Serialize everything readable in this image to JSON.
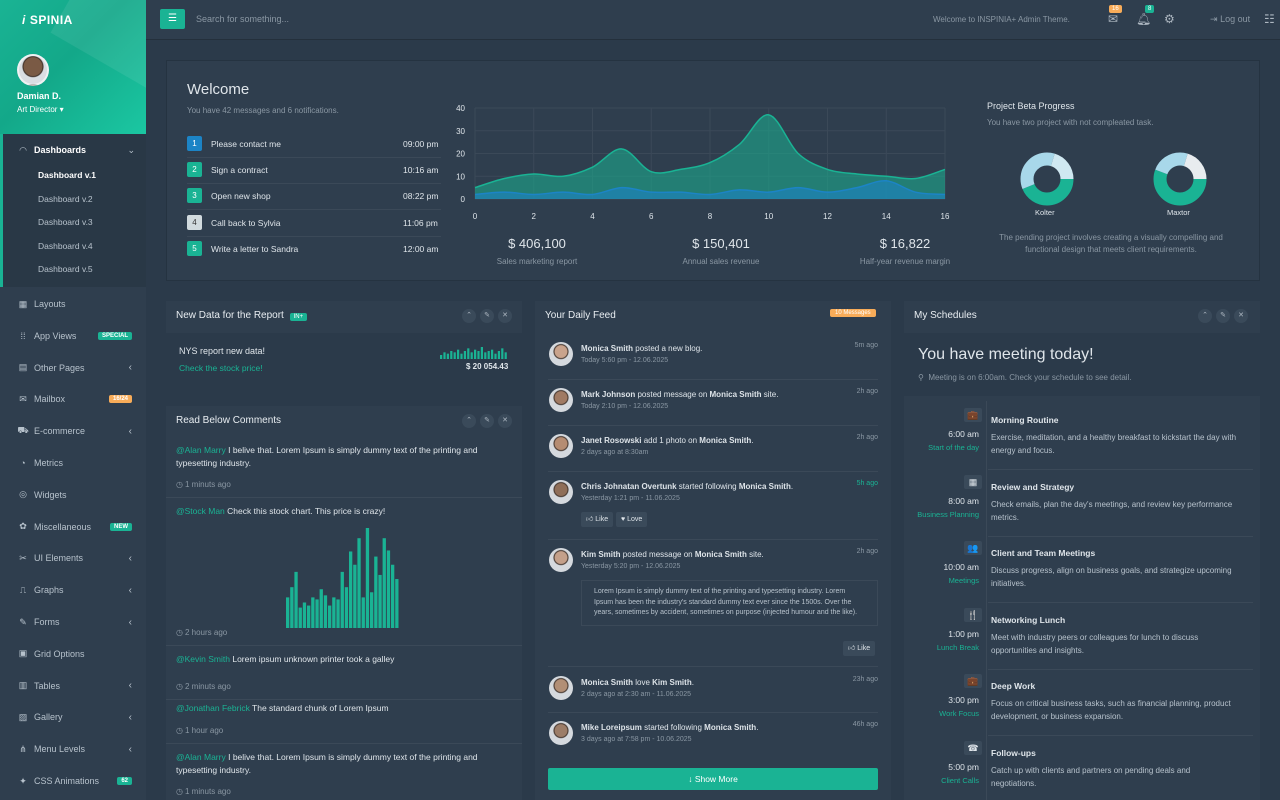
{
  "app": {
    "logo_i": "i",
    "logo_rest": "SPINIA"
  },
  "user": {
    "name": "Damian D.",
    "role": "Art Director ▾"
  },
  "sidebar": {
    "active": {
      "label": "Dashboards",
      "items": [
        "Dashboard v.1",
        "Dashboard v.2",
        "Dashboard v.3",
        "Dashboard v.4",
        "Dashboard v.5"
      ]
    },
    "items": [
      {
        "label": "Layouts",
        "icon": "▦"
      },
      {
        "label": "App Views",
        "icon": "⁞⁞",
        "badge": "SPECIAL"
      },
      {
        "label": "Other Pages",
        "icon": "▤",
        "arrow": "‹"
      },
      {
        "label": "Mailbox",
        "icon": "✉",
        "badge": "16/24"
      },
      {
        "label": "E-commerce",
        "icon": "⛟",
        "arrow": "‹"
      },
      {
        "label": "Metrics",
        "icon": "◔"
      },
      {
        "label": "Widgets",
        "icon": "◎"
      },
      {
        "label": "Miscellaneous",
        "icon": "✿",
        "badge": "NEW"
      },
      {
        "label": "UI Elements",
        "icon": "✂",
        "arrow": "‹"
      },
      {
        "label": "Graphs",
        "icon": "⎍",
        "arrow": "‹"
      },
      {
        "label": "Forms",
        "icon": "✎",
        "arrow": "‹"
      },
      {
        "label": "Grid Options",
        "icon": "▣"
      },
      {
        "label": "Tables",
        "icon": "▥",
        "arrow": "‹"
      },
      {
        "label": "Gallery",
        "icon": "▨",
        "arrow": "‹"
      },
      {
        "label": "Menu Levels",
        "icon": "⋔",
        "arrow": "‹"
      },
      {
        "label": "CSS Animations",
        "icon": "✦",
        "badge": "62"
      }
    ]
  },
  "topbar": {
    "search_placeholder": "Search for something...",
    "welcome": "Welcome to INSPINIA+ Admin Theme.",
    "mail_count": "16",
    "bell_count": "8",
    "logout": "Log out"
  },
  "welcome": {
    "title": "Welcome",
    "subtitle": "You have 42 messages and 6 notifications.",
    "tasks": [
      {
        "n": "1",
        "text": "Please contact me",
        "time": "09:00 pm",
        "color": "#1c84c6"
      },
      {
        "n": "2",
        "text": "Sign a contract",
        "time": "10:16 am",
        "color": "#1ab394"
      },
      {
        "n": "3",
        "text": "Open new shop",
        "time": "08:22 pm",
        "color": "#1ab394"
      },
      {
        "n": "4",
        "text": "Call back to Sylvia",
        "time": "11:06 pm",
        "color": "#d1dade"
      },
      {
        "n": "5",
        "text": "Write a letter to Sandra",
        "time": "12:00 am",
        "color": "#1ab394"
      }
    ],
    "stats": [
      {
        "value": "$ 406,100",
        "label": "Sales marketing report"
      },
      {
        "value": "$ 150,401",
        "label": "Annual sales revenue"
      },
      {
        "value": "$ 16,822",
        "label": "Half-year revenue margin"
      }
    ]
  },
  "chart_data": {
    "type": "area",
    "x": [
      0,
      1,
      2,
      3,
      4,
      5,
      6,
      7,
      8,
      9,
      10,
      11,
      12,
      13,
      14,
      15,
      16
    ],
    "series": [
      {
        "values": [
          5,
          9,
          11,
          10,
          14,
          22,
          12,
          13,
          16,
          24,
          37,
          20,
          13,
          11,
          10,
          9,
          13
        ]
      },
      {
        "values": [
          2,
          3,
          2,
          3,
          2,
          5,
          3,
          3,
          2,
          4,
          3,
          5,
          3,
          5,
          8,
          3,
          2
        ]
      }
    ],
    "xticks": [
      "0",
      "2",
      "4",
      "6",
      "8",
      "10",
      "12",
      "14",
      "16"
    ],
    "yticks": [
      "0",
      "10",
      "20",
      "30",
      "40"
    ],
    "ylim": [
      0,
      40
    ],
    "colors": [
      "#1ab394",
      "#1c84c6"
    ]
  },
  "beta": {
    "title": "Project Beta Progress",
    "subtitle": "You have two project with not compleated task.",
    "donuts": [
      {
        "label": "Kolter"
      },
      {
        "label": "Maxtor"
      }
    ],
    "desc": "The pending project involves creating a visually compelling and functional design that meets client requirements."
  },
  "report": {
    "title": "New Data for the Report",
    "badge": "IN+",
    "headline": "NYS report new data!",
    "link": "Check the stock price!",
    "amount": "$ 20 054.43",
    "spark": [
      3,
      5,
      4,
      6,
      5,
      7,
      4,
      6,
      8,
      5,
      7,
      6,
      9,
      5,
      6,
      7,
      4,
      6,
      8,
      5
    ]
  },
  "comments": {
    "title": "Read Below Comments",
    "items": [
      {
        "author": "@Alan Marry",
        "text": " I belive that. Lorem Ipsum is simply dummy text of the printing and typesetting industry.",
        "time": "1 minuts ago"
      },
      {
        "author": "@Stock Man",
        "text": " Check this stock chart. This price is crazy!",
        "time": "2 hours ago"
      },
      {
        "author": "@Kevin Smith",
        "text": " Lorem ipsum unknown printer took a galley",
        "time": "2 minuts ago"
      },
      {
        "author": "@Jonathan Febrick",
        "text": " The standard chunk of Lorem Ipsum",
        "time": "1 hour ago"
      },
      {
        "author": "@Alan Marry",
        "text": " I belive that. Lorem Ipsum is simply dummy text of the printing and typesetting industry.",
        "time": "1 minuts ago"
      }
    ],
    "bars": [
      30,
      40,
      55,
      20,
      25,
      22,
      30,
      28,
      38,
      32,
      22,
      30,
      28,
      55,
      40,
      75,
      62,
      88,
      30,
      98,
      35,
      70,
      52,
      88,
      76,
      62,
      48
    ]
  },
  "feed": {
    "title": "Your Daily Feed",
    "badge": "10 Messages",
    "items": [
      {
        "name": "Monica Smith",
        "action": " posted a new blog.",
        "target": "",
        "suffix": "",
        "meta": "Today 5:60 pm - 12.06.2025",
        "ago": "5m ago"
      },
      {
        "name": "Mark Johnson",
        "action": " posted message on ",
        "target": "Monica Smith",
        "suffix": " site.",
        "meta": "Today 2:10 pm - 12.06.2025",
        "ago": "2h ago"
      },
      {
        "name": "Janet Rosowski",
        "action": " add 1 photo on ",
        "target": "Monica Smith",
        "suffix": ".",
        "meta": "2 days ago at 8:30am",
        "ago": "2h ago"
      },
      {
        "name": "Chris Johnatan Overtunk",
        "action": " started following ",
        "target": "Monica Smith",
        "suffix": ".",
        "meta": "Yesterday 1:21 pm - 11.06.2025",
        "ago": "5h ago"
      },
      {
        "name": "Kim Smith",
        "action": " posted message on ",
        "target": "Monica Smith",
        "suffix": " site.",
        "meta": "Yesterday 5:20 pm - 12.06.2025",
        "ago": "2h ago"
      },
      {
        "name": "Monica Smith",
        "action": " love ",
        "target": "Kim Smith",
        "suffix": ".",
        "meta": "2 days ago at 2:30 am - 11.06.2025",
        "ago": "23h ago"
      },
      {
        "name": "Mike Loreipsum",
        "action": " started following ",
        "target": "Monica Smith",
        "suffix": ".",
        "meta": "3 days ago at 7:58 pm - 10.06.2025",
        "ago": "46h ago"
      }
    ],
    "like": "Like",
    "love": "Love",
    "quote": "Lorem Ipsum is simply dummy text of the printing and typesetting industry. Lorem Ipsum has been the industry's standard dummy text ever since the 1500s. Over the years, sometimes by accident, sometimes on purpose (injected humour and the like).",
    "show_more": "Show More"
  },
  "schedule": {
    "title": "My Schedules",
    "meeting_title": "You have meeting today!",
    "meeting_sub": "Meeting is on 6:00am. Check your schedule to see detail.",
    "items": [
      {
        "icon": "💼",
        "time": "6:00 am",
        "tag": "Start of the day",
        "title": "Morning Routine",
        "text": "Exercise, meditation, and a healthy breakfast to kickstart the day with energy and focus."
      },
      {
        "icon": "▦",
        "time": "8:00 am",
        "tag": "Business Planning",
        "title": "Review and Strategy",
        "text": "Check emails, plan the day's meetings, and review key performance metrics."
      },
      {
        "icon": "👥",
        "time": "10:00 am",
        "tag": "Meetings",
        "title": "Client and Team Meetings",
        "text": "Discuss progress, align on business goals, and strategize upcoming initiatives."
      },
      {
        "icon": "🍴",
        "time": "1:00 pm",
        "tag": "Lunch Break",
        "title": "Networking Lunch",
        "text": "Meet with industry peers or colleagues for lunch to discuss opportunities and insights."
      },
      {
        "icon": "💼",
        "time": "3:00 pm",
        "tag": "Work Focus",
        "title": "Deep Work",
        "text": "Focus on critical business tasks, such as financial planning, product development, or business expansion."
      },
      {
        "icon": "☎",
        "time": "5:00 pm",
        "tag": "Client Calls",
        "title": "Follow-ups",
        "text": "Catch up with clients and partners on pending deals and negotiations."
      }
    ]
  }
}
